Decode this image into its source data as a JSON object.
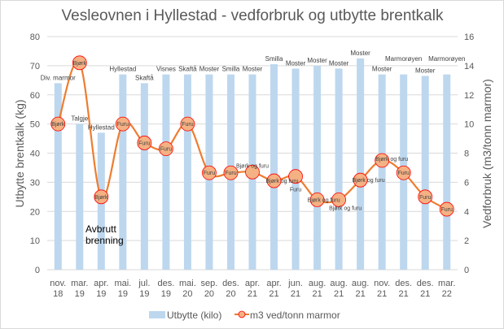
{
  "chart_data": {
    "type": "bar+line",
    "title": "Vesleovnen i Hyllestad - vedforbruk og utbytte brentkalk",
    "ylabel": "Utbytte brentkalk (kg)",
    "y2label": "Vedforbruk (m3/tonn marmor)",
    "ylim": [
      0,
      80
    ],
    "y2lim": [
      0,
      16
    ],
    "yticks": [
      "0",
      "10",
      "20",
      "30",
      "40",
      "50",
      "60",
      "70",
      "80"
    ],
    "y2ticks": [
      "0",
      "2",
      "4",
      "6",
      "8",
      "10",
      "12",
      "14",
      "16"
    ],
    "grid": true,
    "legend_position": "bottom",
    "categories": [
      [
        "nov.",
        "18"
      ],
      [
        "mar.",
        "19"
      ],
      [
        "apr.",
        "19"
      ],
      [
        "mai.",
        "19"
      ],
      [
        "jul.",
        "19"
      ],
      [
        "des.",
        "19"
      ],
      [
        "mai.",
        "20"
      ],
      [
        "sep.",
        "20"
      ],
      [
        "des.",
        "20"
      ],
      [
        "apr.",
        "21"
      ],
      [
        "apr.",
        "21"
      ],
      [
        "jun.",
        "21"
      ],
      [
        "aug.",
        "21"
      ],
      [
        "aug.",
        "21"
      ],
      [
        "aug.",
        "21"
      ],
      [
        "nov.",
        "21"
      ],
      [
        "des.",
        "21"
      ],
      [
        "des.",
        "21"
      ],
      [
        "mar.",
        "22"
      ]
    ],
    "series": [
      {
        "name": "Utbytte (kilo)",
        "type": "bar",
        "axis": "left",
        "color": "#bdd7ee",
        "values": [
          64,
          50,
          47,
          67,
          64,
          67,
          67,
          67,
          67,
          67,
          70.5,
          69,
          70,
          69,
          72.5,
          67,
          67,
          66.5,
          67
        ],
        "labels": [
          "Div. marmor",
          "Talgje",
          "Hyllestad",
          "Hyllestad",
          "Skaftå",
          "Visnes",
          "Skaftå",
          "Moster",
          "Smilla",
          "Moster",
          "Smilla",
          "Moster",
          "Moster",
          "Moster",
          "Moster",
          "Moster",
          "Marmorøyen",
          "Moster",
          "Marmorøyen"
        ]
      },
      {
        "name": "m3 ved/tonn marmor",
        "type": "line",
        "axis": "right",
        "color": "#ed7d31",
        "marker_fill": "#f4b183",
        "marker_stroke": "#ff0000",
        "values": [
          10,
          14.2,
          5,
          10,
          8.7,
          8.3,
          10,
          6.65,
          6.65,
          6.7,
          6.1,
          6.4,
          4.8,
          4.8,
          6.15,
          7.5,
          6.65,
          5,
          4.15
        ],
        "labels": [
          "Bjørk",
          "Bjørk",
          "Bjørk",
          "Furu",
          "Furu",
          "Furu",
          "Furu",
          "Furu",
          "Furu",
          "Bjørk og furu",
          "Bjørk og furu",
          "Furu",
          "Bjørk og furu",
          "Bjørk og furu",
          "Bjørk og furu",
          "Bjørk og furu",
          "Furu",
          "Furu",
          "Furu"
        ]
      }
    ],
    "annotations": [
      "Avbrutt",
      "brenning"
    ]
  }
}
